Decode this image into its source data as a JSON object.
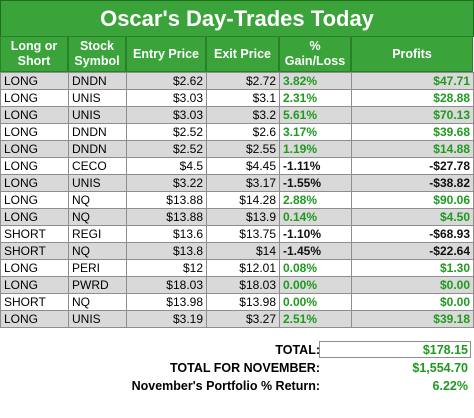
{
  "title": "Oscar's Day-Trades Today",
  "headers": {
    "side": "Long or Short",
    "symbol": "Stock Symbol",
    "entry": "Entry Price",
    "exit": "Exit Price",
    "pct": "% Gain/Loss",
    "profits": "Profits"
  },
  "rows": [
    {
      "side": "LONG",
      "symbol": "DNDN",
      "entry": "$2.62",
      "exit": "$2.72",
      "pct": "3.82%",
      "profit": "$47.71",
      "dir": "gain"
    },
    {
      "side": "LONG",
      "symbol": "UNIS",
      "entry": "$3.03",
      "exit": "$3.1",
      "pct": "2.31%",
      "profit": "$28.88",
      "dir": "gain"
    },
    {
      "side": "LONG",
      "symbol": "UNIS",
      "entry": "$3.03",
      "exit": "$3.2",
      "pct": "5.61%",
      "profit": "$70.13",
      "dir": "gain"
    },
    {
      "side": "LONG",
      "symbol": "DNDN",
      "entry": "$2.52",
      "exit": "$2.6",
      "pct": "3.17%",
      "profit": "$39.68",
      "dir": "gain"
    },
    {
      "side": "LONG",
      "symbol": "DNDN",
      "entry": "$2.52",
      "exit": "$2.55",
      "pct": "1.19%",
      "profit": "$14.88",
      "dir": "gain"
    },
    {
      "side": "LONG",
      "symbol": "CECO",
      "entry": "$4.5",
      "exit": "$4.45",
      "pct": "-1.11%",
      "profit": "-$27.78",
      "dir": "loss"
    },
    {
      "side": "LONG",
      "symbol": "UNIS",
      "entry": "$3.22",
      "exit": "$3.17",
      "pct": "-1.55%",
      "profit": "-$38.82",
      "dir": "loss"
    },
    {
      "side": "LONG",
      "symbol": "NQ",
      "entry": "$13.88",
      "exit": "$14.28",
      "pct": "2.88%",
      "profit": "$90.06",
      "dir": "gain"
    },
    {
      "side": "LONG",
      "symbol": "NQ",
      "entry": "$13.88",
      "exit": "$13.9",
      "pct": "0.14%",
      "profit": "$4.50",
      "dir": "gain"
    },
    {
      "side": "SHORT",
      "symbol": "REGI",
      "entry": "$13.6",
      "exit": "$13.75",
      "pct": "-1.10%",
      "profit": "-$68.93",
      "dir": "loss"
    },
    {
      "side": "SHORT",
      "symbol": "NQ",
      "entry": "$13.8",
      "exit": "$14",
      "pct": "-1.45%",
      "profit": "-$22.64",
      "dir": "loss"
    },
    {
      "side": "LONG",
      "symbol": "PERI",
      "entry": "$12",
      "exit": "$12.01",
      "pct": "0.08%",
      "profit": "$1.30",
      "dir": "gain"
    },
    {
      "side": "LONG",
      "symbol": "PWRD",
      "entry": "$18.03",
      "exit": "$18.03",
      "pct": "0.00%",
      "profit": "$0.00",
      "dir": "gain"
    },
    {
      "side": "SHORT",
      "symbol": "NQ",
      "entry": "$13.98",
      "exit": "$13.98",
      "pct": "0.00%",
      "profit": "$0.00",
      "dir": "gain"
    },
    {
      "side": "LONG",
      "symbol": "UNIS",
      "entry": "$3.19",
      "exit": "$3.27",
      "pct": "2.51%",
      "profit": "$39.18",
      "dir": "gain"
    }
  ],
  "summary": {
    "total_label": "TOTAL:",
    "total_value": "$178.15",
    "month_label": "TOTAL FOR NOVEMBER:",
    "month_value": "$1,554.70",
    "return_label": "November's Portfolio % Return:",
    "return_value": "6.22%"
  },
  "colors": {
    "header_green": "#3aa33a",
    "gain_green": "#1f9a1f",
    "loss": "#111111",
    "row_shade": "#d9d9d9"
  }
}
